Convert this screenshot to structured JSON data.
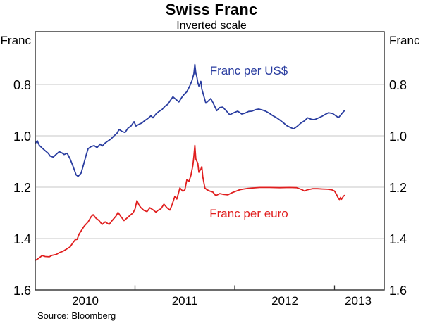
{
  "header": {
    "title": "Swiss Franc",
    "subtitle": "Inverted scale"
  },
  "source": {
    "text": "Source: Bloomberg"
  },
  "axis": {
    "left_unit": "Franc",
    "right_unit": "Franc",
    "ytick_labels": [
      "0.8",
      "1.0",
      "1.2",
      "1.4",
      "1.6"
    ],
    "year_labels": [
      "2010",
      "2011",
      "2012",
      "2013"
    ]
  },
  "colors": {
    "usd_line": "#2A3DA0",
    "euro_line": "#E01F1F",
    "gridline": "#C7C7C7",
    "frame": "#2F2F2F"
  },
  "chart_data": {
    "type": "line",
    "title": "Swiss Franc",
    "subtitle": "Inverted scale",
    "source": "Source: Bloomberg",
    "y_axis": {
      "label": "Franc",
      "inverted": true,
      "ticks": [
        0.8,
        1.0,
        1.2,
        1.4,
        1.6
      ],
      "gridlines": [
        0.8,
        1.0,
        1.2,
        1.4
      ],
      "value_at_top": 0.594,
      "value_at_bottom": 1.6
    },
    "x_axis": {
      "range_years": [
        2010.0,
        2013.5
      ],
      "tick_years": [
        2011,
        2012,
        2013
      ],
      "year_labels": [
        "2010",
        "2011",
        "2012",
        "2013"
      ],
      "frequency": "daily"
    },
    "legend_position": "inline-labels",
    "grid": true,
    "series": [
      {
        "name": "Franc per US$",
        "color": "#2A3DA0",
        "points": [
          [
            2010.0,
            1.03
          ],
          [
            2010.02,
            1.019
          ],
          [
            2010.04,
            1.037
          ],
          [
            2010.07,
            1.048
          ],
          [
            2010.1,
            1.058
          ],
          [
            2010.13,
            1.068
          ],
          [
            2010.15,
            1.079
          ],
          [
            2010.18,
            1.083
          ],
          [
            2010.21,
            1.072
          ],
          [
            2010.24,
            1.062
          ],
          [
            2010.27,
            1.067
          ],
          [
            2010.29,
            1.073
          ],
          [
            2010.32,
            1.068
          ],
          [
            2010.35,
            1.09
          ],
          [
            2010.38,
            1.12
          ],
          [
            2010.41,
            1.152
          ],
          [
            2010.43,
            1.158
          ],
          [
            2010.46,
            1.145
          ],
          [
            2010.48,
            1.118
          ],
          [
            2010.51,
            1.075
          ],
          [
            2010.53,
            1.05
          ],
          [
            2010.56,
            1.042
          ],
          [
            2010.59,
            1.038
          ],
          [
            2010.62,
            1.046
          ],
          [
            2010.65,
            1.032
          ],
          [
            2010.67,
            1.04
          ],
          [
            2010.7,
            1.028
          ],
          [
            2010.73,
            1.02
          ],
          [
            2010.76,
            1.012
          ],
          [
            2010.79,
            1.0
          ],
          [
            2010.82,
            0.99
          ],
          [
            2010.84,
            0.975
          ],
          [
            2010.87,
            0.983
          ],
          [
            2010.9,
            0.987
          ],
          [
            2010.93,
            0.97
          ],
          [
            2010.96,
            0.962
          ],
          [
            2010.99,
            0.945
          ],
          [
            2011.01,
            0.962
          ],
          [
            2011.04,
            0.955
          ],
          [
            2011.07,
            0.95
          ],
          [
            2011.1,
            0.94
          ],
          [
            2011.13,
            0.932
          ],
          [
            2011.16,
            0.922
          ],
          [
            2011.18,
            0.93
          ],
          [
            2011.21,
            0.915
          ],
          [
            2011.24,
            0.905
          ],
          [
            2011.27,
            0.898
          ],
          [
            2011.3,
            0.885
          ],
          [
            2011.33,
            0.877
          ],
          [
            2011.35,
            0.865
          ],
          [
            2011.38,
            0.848
          ],
          [
            2011.41,
            0.858
          ],
          [
            2011.44,
            0.868
          ],
          [
            2011.47,
            0.85
          ],
          [
            2011.49,
            0.84
          ],
          [
            2011.52,
            0.828
          ],
          [
            2011.55,
            0.805
          ],
          [
            2011.57,
            0.786
          ],
          [
            2011.59,
            0.758
          ],
          [
            2011.6,
            0.722
          ],
          [
            2011.61,
            0.756
          ],
          [
            2011.62,
            0.77
          ],
          [
            2011.63,
            0.793
          ],
          [
            2011.64,
            0.806
          ],
          [
            2011.66,
            0.788
          ],
          [
            2011.67,
            0.818
          ],
          [
            2011.69,
            0.845
          ],
          [
            2011.71,
            0.873
          ],
          [
            2011.74,
            0.862
          ],
          [
            2011.76,
            0.855
          ],
          [
            2011.78,
            0.87
          ],
          [
            2011.82,
            0.902
          ],
          [
            2011.85,
            0.89
          ],
          [
            2011.88,
            0.888
          ],
          [
            2011.92,
            0.905
          ],
          [
            2011.95,
            0.918
          ],
          [
            2011.99,
            0.91
          ],
          [
            2012.03,
            0.904
          ],
          [
            2012.07,
            0.915
          ],
          [
            2012.1,
            0.912
          ],
          [
            2012.14,
            0.905
          ],
          [
            2012.17,
            0.904
          ],
          [
            2012.21,
            0.898
          ],
          [
            2012.24,
            0.896
          ],
          [
            2012.28,
            0.9
          ],
          [
            2012.31,
            0.904
          ],
          [
            2012.35,
            0.913
          ],
          [
            2012.38,
            0.921
          ],
          [
            2012.42,
            0.93
          ],
          [
            2012.45,
            0.938
          ],
          [
            2012.49,
            0.95
          ],
          [
            2012.52,
            0.96
          ],
          [
            2012.56,
            0.968
          ],
          [
            2012.59,
            0.973
          ],
          [
            2012.63,
            0.962
          ],
          [
            2012.66,
            0.951
          ],
          [
            2012.7,
            0.941
          ],
          [
            2012.73,
            0.93
          ],
          [
            2012.77,
            0.936
          ],
          [
            2012.8,
            0.937
          ],
          [
            2012.84,
            0.93
          ],
          [
            2012.87,
            0.925
          ],
          [
            2012.91,
            0.916
          ],
          [
            2012.94,
            0.91
          ],
          [
            2012.98,
            0.913
          ],
          [
            2013.01,
            0.921
          ],
          [
            2013.04,
            0.929
          ],
          [
            2013.06,
            0.92
          ],
          [
            2013.08,
            0.91
          ],
          [
            2013.1,
            0.902
          ]
        ]
      },
      {
        "name": "Franc per euro",
        "color": "#E01F1F",
        "points": [
          [
            2010.0,
            1.485
          ],
          [
            2010.03,
            1.478
          ],
          [
            2010.07,
            1.466
          ],
          [
            2010.1,
            1.47
          ],
          [
            2010.14,
            1.471
          ],
          [
            2010.17,
            1.465
          ],
          [
            2010.21,
            1.462
          ],
          [
            2010.24,
            1.455
          ],
          [
            2010.28,
            1.449
          ],
          [
            2010.31,
            1.442
          ],
          [
            2010.35,
            1.432
          ],
          [
            2010.38,
            1.415
          ],
          [
            2010.4,
            1.405
          ],
          [
            2010.42,
            1.403
          ],
          [
            2010.44,
            1.382
          ],
          [
            2010.46,
            1.37
          ],
          [
            2010.49,
            1.352
          ],
          [
            2010.53,
            1.335
          ],
          [
            2010.56,
            1.315
          ],
          [
            2010.58,
            1.307
          ],
          [
            2010.61,
            1.321
          ],
          [
            2010.64,
            1.33
          ],
          [
            2010.67,
            1.345
          ],
          [
            2010.7,
            1.335
          ],
          [
            2010.74,
            1.345
          ],
          [
            2010.77,
            1.33
          ],
          [
            2010.81,
            1.312
          ],
          [
            2010.83,
            1.298
          ],
          [
            2010.86,
            1.315
          ],
          [
            2010.89,
            1.33
          ],
          [
            2010.92,
            1.32
          ],
          [
            2010.95,
            1.31
          ],
          [
            2010.98,
            1.3
          ],
          [
            2011.0,
            1.285
          ],
          [
            2011.02,
            1.252
          ],
          [
            2011.04,
            1.27
          ],
          [
            2011.06,
            1.28
          ],
          [
            2011.09,
            1.29
          ],
          [
            2011.12,
            1.295
          ],
          [
            2011.15,
            1.28
          ],
          [
            2011.18,
            1.288
          ],
          [
            2011.21,
            1.297
          ],
          [
            2011.23,
            1.29
          ],
          [
            2011.26,
            1.284
          ],
          [
            2011.29,
            1.266
          ],
          [
            2011.32,
            1.28
          ],
          [
            2011.35,
            1.289
          ],
          [
            2011.37,
            1.27
          ],
          [
            2011.4,
            1.235
          ],
          [
            2011.42,
            1.246
          ],
          [
            2011.45,
            1.203
          ],
          [
            2011.48,
            1.216
          ],
          [
            2011.5,
            1.21
          ],
          [
            2011.52,
            1.17
          ],
          [
            2011.54,
            1.178
          ],
          [
            2011.56,
            1.155
          ],
          [
            2011.58,
            1.115
          ],
          [
            2011.59,
            1.08
          ],
          [
            2011.6,
            1.037
          ],
          [
            2011.61,
            1.09
          ],
          [
            2011.63,
            1.107
          ],
          [
            2011.64,
            1.142
          ],
          [
            2011.66,
            1.13
          ],
          [
            2011.67,
            1.12
          ],
          [
            2011.68,
            1.16
          ],
          [
            2011.7,
            1.203
          ],
          [
            2011.72,
            1.21
          ],
          [
            2011.75,
            1.215
          ],
          [
            2011.78,
            1.219
          ],
          [
            2011.81,
            1.233
          ],
          [
            2011.85,
            1.225
          ],
          [
            2011.89,
            1.228
          ],
          [
            2011.93,
            1.23
          ],
          [
            2011.97,
            1.222
          ],
          [
            2012.01,
            1.216
          ],
          [
            2012.05,
            1.21
          ],
          [
            2012.09,
            1.207
          ],
          [
            2012.13,
            1.205
          ],
          [
            2012.18,
            1.203
          ],
          [
            2012.25,
            1.201
          ],
          [
            2012.35,
            1.201
          ],
          [
            2012.45,
            1.202
          ],
          [
            2012.55,
            1.201
          ],
          [
            2012.62,
            1.202
          ],
          [
            2012.67,
            1.209
          ],
          [
            2012.7,
            1.215
          ],
          [
            2012.73,
            1.21
          ],
          [
            2012.78,
            1.206
          ],
          [
            2012.83,
            1.206
          ],
          [
            2012.88,
            1.207
          ],
          [
            2012.93,
            1.208
          ],
          [
            2012.97,
            1.21
          ],
          [
            2013.0,
            1.215
          ],
          [
            2013.02,
            1.228
          ],
          [
            2013.04,
            1.245
          ],
          [
            2013.05,
            1.248
          ],
          [
            2013.06,
            1.24
          ],
          [
            2013.07,
            1.247
          ],
          [
            2013.09,
            1.235
          ],
          [
            2013.1,
            1.232
          ]
        ]
      }
    ]
  }
}
